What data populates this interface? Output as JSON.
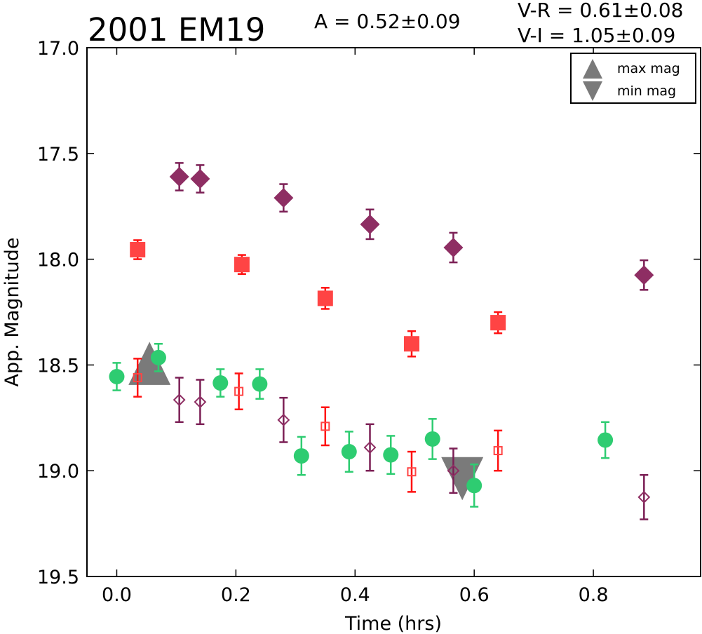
{
  "chart_data": {
    "type": "scatter",
    "title": "2001 EM19",
    "amplitude_text": "A  = 0.52±0.09",
    "color_text_vr": "V-R = 0.61±0.08",
    "color_text_vi": "V-I  = 1.05±0.09",
    "xlabel": "Time (hrs)",
    "ylabel": "App. Magnitude",
    "xlim": [
      -0.05,
      0.98
    ],
    "ylim": [
      19.5,
      17.0
    ],
    "y_inverted": true,
    "x_ticks": [
      0.0,
      0.2,
      0.4,
      0.6,
      0.8
    ],
    "x_tick_labels": [
      "0.0",
      "0.2",
      "0.4",
      "0.6",
      "0.8"
    ],
    "y_ticks": [
      17.0,
      17.5,
      18.0,
      18.5,
      19.0,
      19.5
    ],
    "y_tick_labels": [
      "17.0",
      "17.5",
      "18.0",
      "18.5",
      "19.0",
      "19.5"
    ],
    "legend": {
      "placement": "top-right",
      "entries": [
        {
          "label": "max mag",
          "marker": "triangle-up"
        },
        {
          "label": "min mag",
          "marker": "triangle-down"
        }
      ]
    },
    "colors": {
      "green": "#2ecc71",
      "red": "#ff3333",
      "purple": "#7b1f55",
      "extrema": "#7a7a7a"
    },
    "series": [
      {
        "marker": "circle",
        "filled": true,
        "color": "#2ecc71",
        "errcolor": "#2ecc71",
        "points": [
          {
            "x": 0.0,
            "y": 18.555,
            "err": 0.065
          },
          {
            "x": 0.07,
            "y": 18.465,
            "err": 0.065
          },
          {
            "x": 0.174,
            "y": 18.585,
            "err": 0.065
          },
          {
            "x": 0.24,
            "y": 18.59,
            "err": 0.07
          },
          {
            "x": 0.31,
            "y": 18.93,
            "err": 0.09
          },
          {
            "x": 0.39,
            "y": 18.91,
            "err": 0.095
          },
          {
            "x": 0.46,
            "y": 18.925,
            "err": 0.09
          },
          {
            "x": 0.53,
            "y": 18.85,
            "err": 0.095
          },
          {
            "x": 0.6,
            "y": 19.07,
            "err": 0.1
          },
          {
            "x": 0.82,
            "y": 18.855,
            "err": 0.085
          }
        ]
      },
      {
        "marker": "square",
        "filled": true,
        "color": "#ff4444",
        "errcolor": "#ff1111",
        "points": [
          {
            "x": 0.035,
            "y": 17.955,
            "err": 0.045
          },
          {
            "x": 0.21,
            "y": 18.025,
            "err": 0.045
          },
          {
            "x": 0.35,
            "y": 18.185,
            "err": 0.05
          },
          {
            "x": 0.495,
            "y": 18.4,
            "err": 0.06
          },
          {
            "x": 0.64,
            "y": 18.3,
            "err": 0.05
          }
        ]
      },
      {
        "marker": "square",
        "filled": false,
        "color": "#ff4444",
        "errcolor": "#ff1111",
        "points": [
          {
            "x": 0.035,
            "y": 18.56,
            "err": 0.09
          },
          {
            "x": 0.205,
            "y": 18.625,
            "err": 0.085
          },
          {
            "x": 0.35,
            "y": 18.79,
            "err": 0.09
          },
          {
            "x": 0.495,
            "y": 19.005,
            "err": 0.095
          },
          {
            "x": 0.64,
            "y": 18.905,
            "err": 0.095
          }
        ]
      },
      {
        "marker": "diamond",
        "filled": true,
        "color": "#8e2e63",
        "errcolor": "#7b1f55",
        "points": [
          {
            "x": 0.105,
            "y": 17.61,
            "err": 0.065
          },
          {
            "x": 0.14,
            "y": 17.62,
            "err": 0.065
          },
          {
            "x": 0.28,
            "y": 17.71,
            "err": 0.065
          },
          {
            "x": 0.425,
            "y": 17.835,
            "err": 0.07
          },
          {
            "x": 0.565,
            "y": 17.945,
            "err": 0.07
          },
          {
            "x": 0.885,
            "y": 18.075,
            "err": 0.07
          }
        ]
      },
      {
        "marker": "diamond",
        "filled": false,
        "color": "#8e2e63",
        "errcolor": "#7b1f55",
        "points": [
          {
            "x": 0.105,
            "y": 18.665,
            "err": 0.105
          },
          {
            "x": 0.14,
            "y": 18.675,
            "err": 0.105
          },
          {
            "x": 0.28,
            "y": 18.76,
            "err": 0.105
          },
          {
            "x": 0.425,
            "y": 18.89,
            "err": 0.11
          },
          {
            "x": 0.565,
            "y": 19.0,
            "err": 0.105
          },
          {
            "x": 0.885,
            "y": 19.125,
            "err": 0.105
          }
        ]
      }
    ],
    "extrema": [
      {
        "type": "max",
        "x": 0.055,
        "y": 18.51
      },
      {
        "type": "min",
        "x": 0.58,
        "y": 19.02
      }
    ]
  }
}
